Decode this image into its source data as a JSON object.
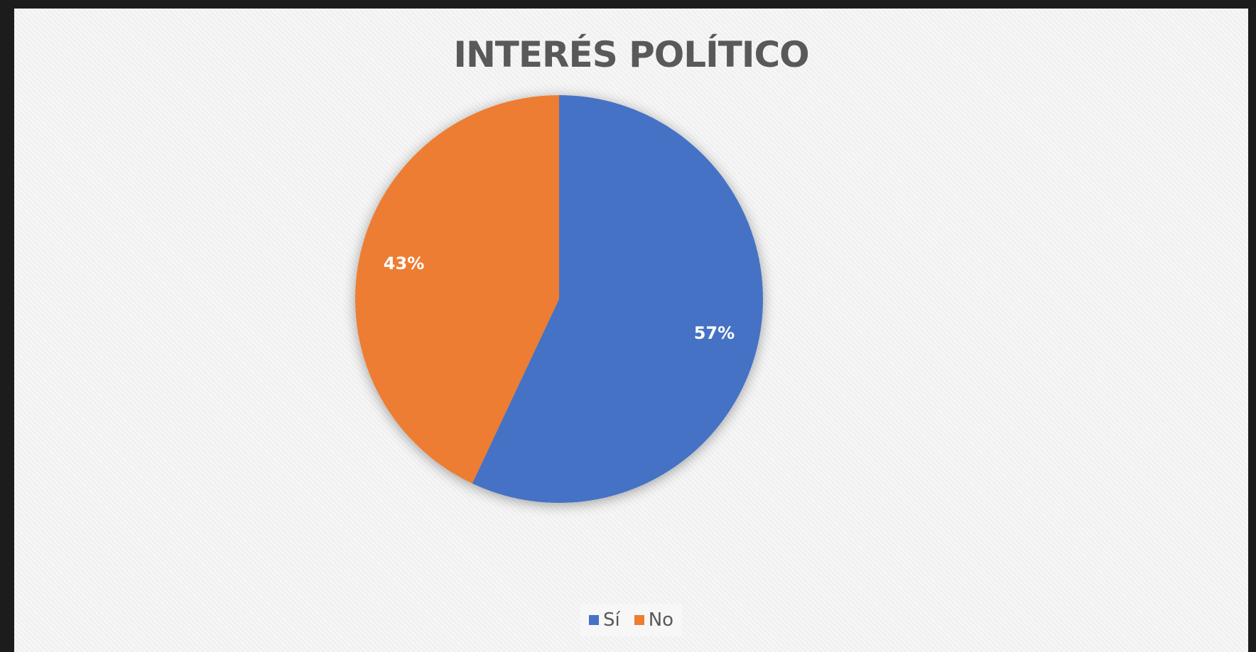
{
  "chart_data": {
    "type": "pie",
    "title": "INTERÉS POLÍTICO",
    "categories": [
      "Sí",
      "No"
    ],
    "values": [
      57,
      43
    ],
    "labels": [
      "57%",
      "43%"
    ],
    "colors": [
      "#4472c4",
      "#ed7d31"
    ],
    "legend_position": "bottom"
  },
  "legend": {
    "items": [
      {
        "label": "Sí",
        "color": "#4472c4"
      },
      {
        "label": "No",
        "color": "#ed7d31"
      }
    ]
  }
}
